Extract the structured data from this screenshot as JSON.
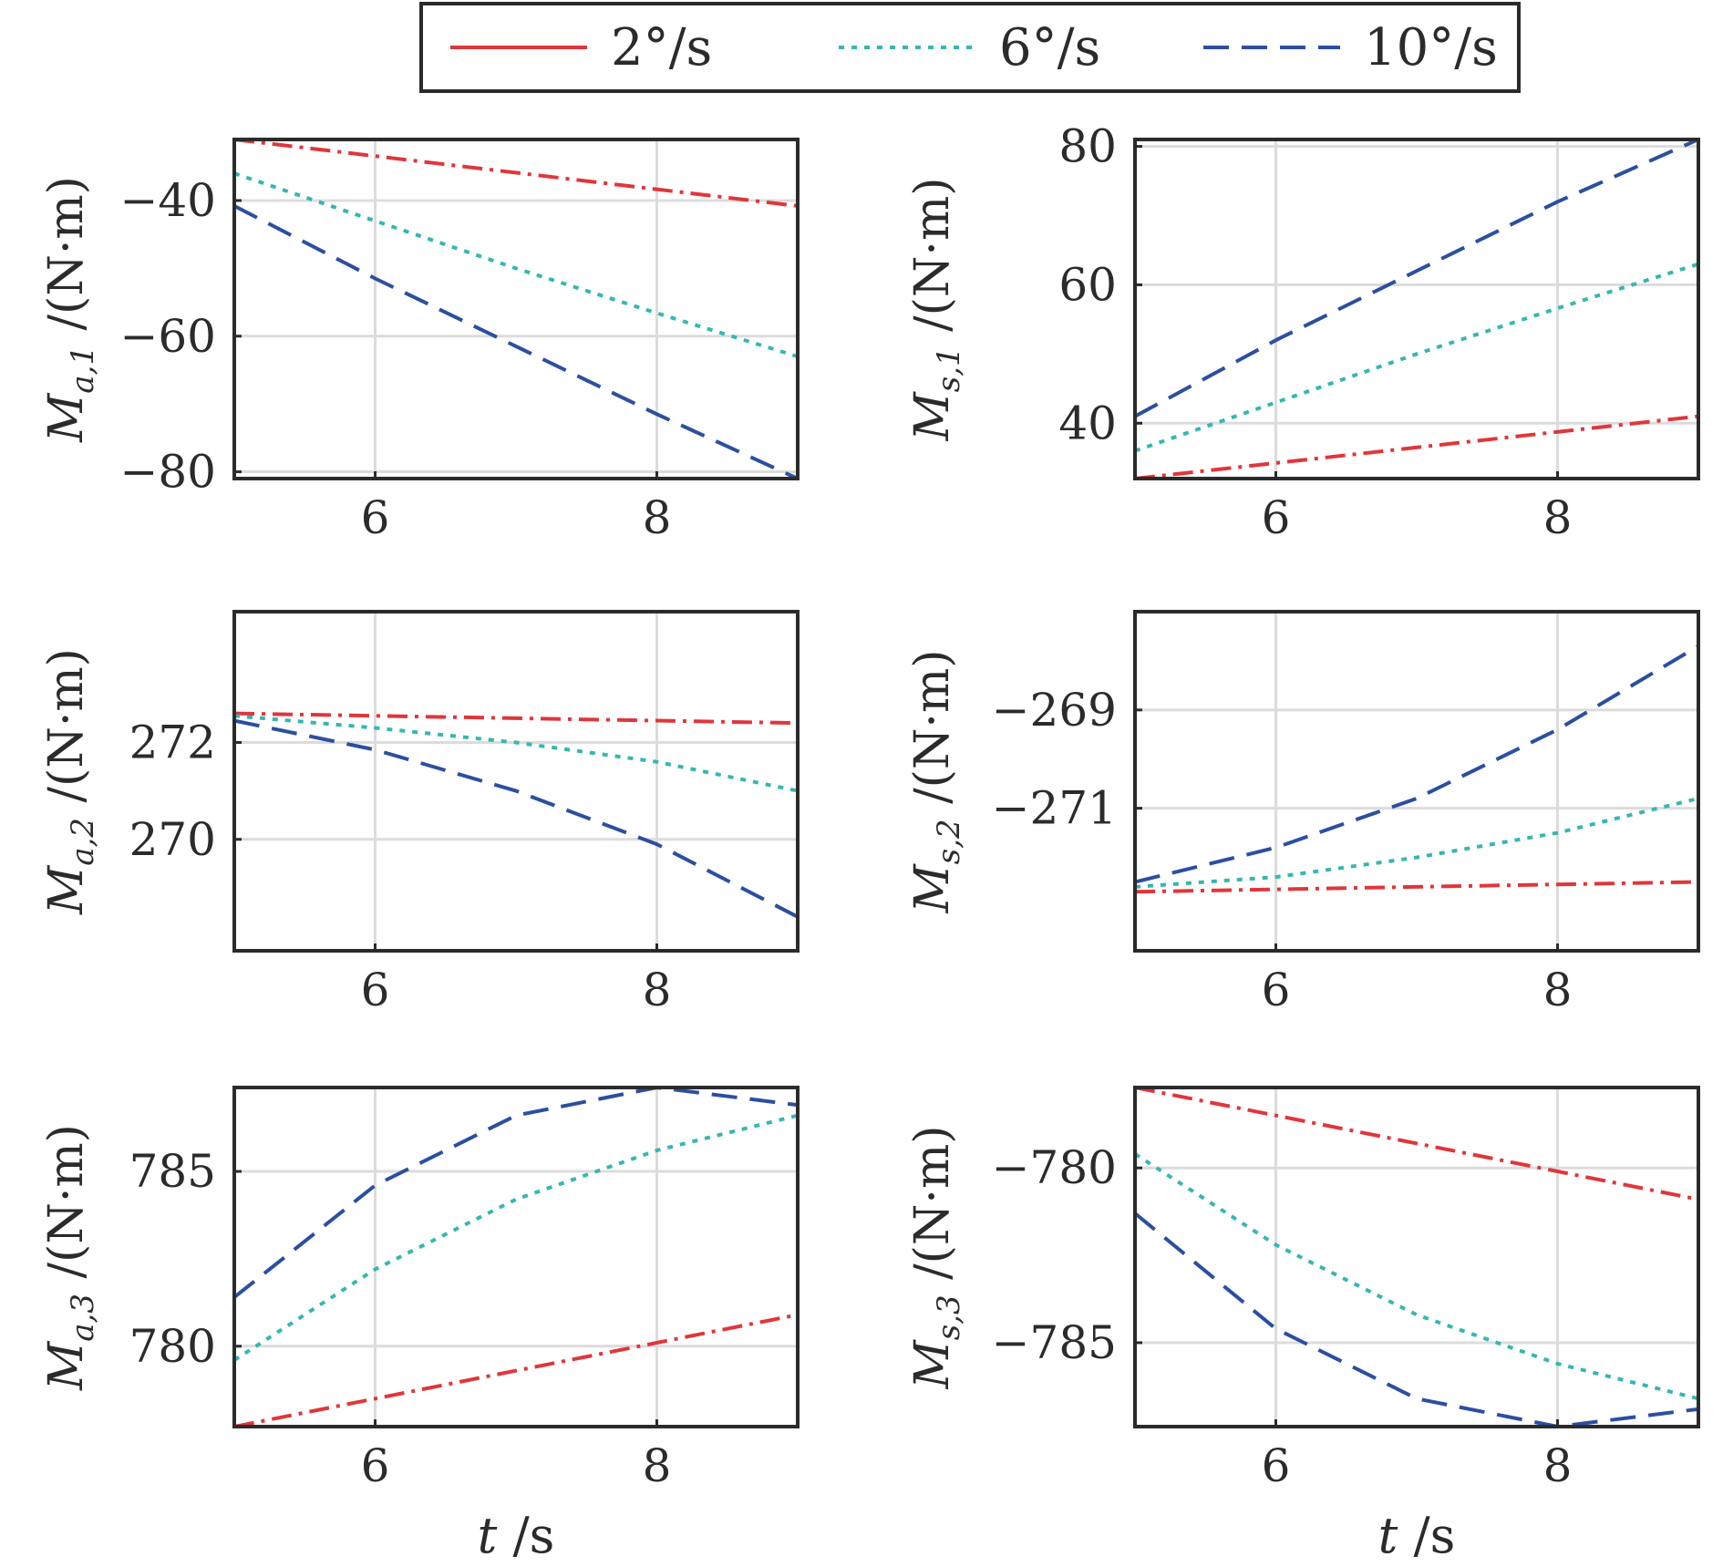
{
  "legend": {
    "items": [
      {
        "label": "2°/s",
        "color": "#e0363a",
        "dash": "dashdot"
      },
      {
        "label": "6°/s",
        "color": "#35b7b0",
        "dash": "dotted"
      },
      {
        "label": "10°/s",
        "color": "#2b4fa0",
        "dash": "dashed"
      }
    ]
  },
  "chart_data": [
    {
      "type": "line",
      "ylabel_main": "M",
      "ylabel_sub": "a,1",
      "ylabel_unit": " /(N·m)",
      "xlim": [
        5,
        9
      ],
      "ylim": [
        -81,
        -31
      ],
      "xticks": [
        6,
        8
      ],
      "yticks": [
        -40,
        -60,
        -80
      ],
      "yticklabels": [
        "−40",
        "−60",
        "−80"
      ],
      "xlabel": "",
      "grid": true,
      "series": [
        {
          "name": "2°/s",
          "x": [
            5,
            9
          ],
          "y": [
            -31,
            -40.8
          ]
        },
        {
          "name": "6°/s",
          "x": [
            5,
            6,
            7,
            8,
            9
          ],
          "y": [
            -36,
            -43,
            -50,
            -56.6,
            -63
          ]
        },
        {
          "name": "10°/s",
          "x": [
            5,
            6,
            7,
            8,
            9
          ],
          "y": [
            -40.8,
            -51.5,
            -61.5,
            -71.5,
            -81
          ]
        }
      ]
    },
    {
      "type": "line",
      "ylabel_main": "M",
      "ylabel_sub": "s,1",
      "ylabel_unit": " /(N·m)",
      "xlim": [
        5,
        9
      ],
      "ylim": [
        32,
        81
      ],
      "xticks": [
        6,
        8
      ],
      "yticks": [
        80,
        60,
        40
      ],
      "yticklabels": [
        "80",
        "60",
        "40"
      ],
      "xlabel": "",
      "grid": true,
      "series": [
        {
          "name": "2°/s",
          "x": [
            5,
            9
          ],
          "y": [
            32,
            41
          ]
        },
        {
          "name": "6°/s",
          "x": [
            5,
            6,
            7,
            8,
            9
          ],
          "y": [
            36,
            43,
            50,
            56.6,
            63
          ]
        },
        {
          "name": "10°/s",
          "x": [
            5,
            6,
            7,
            8,
            9
          ],
          "y": [
            41,
            52,
            62,
            72,
            81
          ]
        }
      ]
    },
    {
      "type": "line",
      "ylabel_main": "M",
      "ylabel_sub": "a,2",
      "ylabel_unit": " /(N·m)",
      "xlim": [
        5,
        9
      ],
      "ylim": [
        267.7,
        274.7
      ],
      "xticks": [
        6,
        8
      ],
      "yticks": [
        272,
        270
      ],
      "yticklabels": [
        "272",
        "270"
      ],
      "xlabel": "",
      "grid": true,
      "series": [
        {
          "name": "2°/s",
          "x": [
            5,
            9
          ],
          "y": [
            272.6,
            272.4
          ]
        },
        {
          "name": "6°/s",
          "x": [
            5,
            6,
            7,
            8,
            9
          ],
          "y": [
            272.55,
            272.3,
            272.0,
            271.6,
            271.0
          ]
        },
        {
          "name": "10°/s",
          "x": [
            5,
            6,
            7,
            8,
            9
          ],
          "y": [
            272.45,
            271.85,
            271.0,
            269.9,
            268.4
          ]
        }
      ]
    },
    {
      "type": "line",
      "ylabel_main": "M",
      "ylabel_sub": "s,2",
      "ylabel_unit": " /(N·m)",
      "xlim": [
        5,
        9
      ],
      "ylim": [
        -273.9,
        -267.0
      ],
      "xticks": [
        6,
        8
      ],
      "yticks": [
        -269,
        -271
      ],
      "yticklabels": [
        "−269",
        "−271"
      ],
      "xlabel": "",
      "grid": true,
      "series": [
        {
          "name": "2°/s",
          "x": [
            5,
            9
          ],
          "y": [
            -272.7,
            -272.5
          ]
        },
        {
          "name": "6°/s",
          "x": [
            5,
            6,
            7,
            8,
            9
          ],
          "y": [
            -272.6,
            -272.4,
            -272.0,
            -271.5,
            -270.8
          ]
        },
        {
          "name": "10°/s",
          "x": [
            5,
            6,
            7,
            8,
            9
          ],
          "y": [
            -272.5,
            -271.8,
            -270.8,
            -269.4,
            -267.7
          ]
        }
      ]
    },
    {
      "type": "line",
      "ylabel_main": "M",
      "ylabel_sub": "a,3",
      "ylabel_unit": " /(N·m)",
      "xlim": [
        5,
        9
      ],
      "ylim": [
        777.7,
        787.4
      ],
      "xticks": [
        6,
        8
      ],
      "yticks": [
        785,
        780
      ],
      "yticklabels": [
        "785",
        "780"
      ],
      "xlabel": "t /s",
      "grid": true,
      "series": [
        {
          "name": "2°/s",
          "x": [
            5,
            9
          ],
          "y": [
            777.7,
            780.9
          ]
        },
        {
          "name": "6°/s",
          "x": [
            5,
            6,
            7,
            8,
            9
          ],
          "y": [
            779.6,
            782.2,
            784.2,
            785.6,
            786.6
          ]
        },
        {
          "name": "10°/s",
          "x": [
            5,
            6,
            7,
            8,
            9
          ],
          "y": [
            781.4,
            784.6,
            786.6,
            787.4,
            786.9
          ]
        }
      ]
    },
    {
      "type": "line",
      "ylabel_main": "M",
      "ylabel_sub": "s,3",
      "ylabel_unit": " /(N·m)",
      "xlim": [
        5,
        9
      ],
      "ylim": [
        -787.4,
        -777.7
      ],
      "xticks": [
        6,
        8
      ],
      "yticks": [
        -780,
        -785
      ],
      "yticklabels": [
        "−780",
        "−785"
      ],
      "xlabel": "t /s",
      "grid": true,
      "series": [
        {
          "name": "2°/s",
          "x": [
            5,
            9
          ],
          "y": [
            -777.7,
            -780.9
          ]
        },
        {
          "name": "6°/s",
          "x": [
            5,
            6,
            7,
            8,
            9
          ],
          "y": [
            -779.6,
            -782.2,
            -784.2,
            -785.6,
            -786.6
          ]
        },
        {
          "name": "10°/s",
          "x": [
            5,
            6,
            7,
            8,
            9
          ],
          "y": [
            -781.3,
            -784.6,
            -786.6,
            -787.4,
            -786.9
          ]
        }
      ]
    }
  ]
}
